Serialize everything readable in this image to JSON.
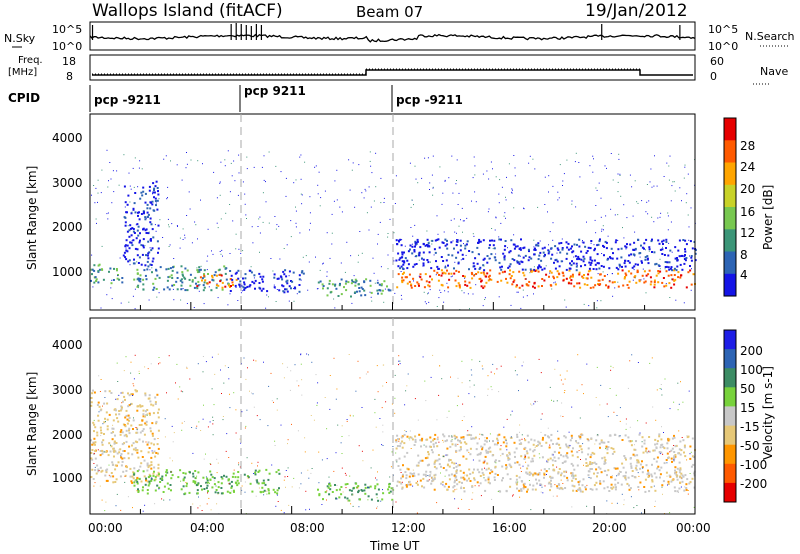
{
  "header": {
    "site": "Wallops Island (fitACF)",
    "beam": "Beam 07",
    "date": "19/Jan/2012"
  },
  "nsky_panel": {
    "left_label": "N.Sky",
    "right_label": "N.Search",
    "ticks_left": [
      "10^5",
      "10^0"
    ],
    "ticks_right": [
      "10^5",
      "10^0"
    ]
  },
  "freq_panel": {
    "left_label_1": "Freq.",
    "left_label_2": "[MHz]",
    "right_label": "Nave",
    "ticks_left": [
      "18",
      "8"
    ],
    "ticks_right": [
      "60",
      "0"
    ]
  },
  "cpid": {
    "label": "CPID",
    "segments": [
      {
        "text": "pcp -9211",
        "start_h": 0
      },
      {
        "text": "pcp 9211",
        "start_h": 6
      },
      {
        "text": "pcp -9211",
        "start_h": 12
      }
    ]
  },
  "x_axis": {
    "label": "Time UT",
    "ticks": [
      "00:00",
      "04:00",
      "08:00",
      "12:00",
      "16:00",
      "20:00",
      "00:00"
    ]
  },
  "power_panel": {
    "ylabel": "Slant Range [km]",
    "yticks": [
      "1000",
      "2000",
      "3000",
      "4000"
    ],
    "colorbar_label": "Power [dB]",
    "colorbar_ticks": [
      "4",
      "8",
      "12",
      "16",
      "20",
      "24",
      "28"
    ],
    "colors": [
      "#1414e6",
      "#2d64b4",
      "#3c9678",
      "#78c850",
      "#c8d228",
      "#ffa500",
      "#ff5a00",
      "#e60000"
    ]
  },
  "velocity_panel": {
    "ylabel": "Slant Range [km]",
    "yticks": [
      "1000",
      "2000",
      "3000",
      "4000"
    ],
    "colorbar_label": "Velocity [m s-1]",
    "colorbar_ticks": [
      "200",
      "100",
      "50",
      "15",
      "-15",
      "-50",
      "-100",
      "-200"
    ],
    "colors": [
      "#1e1ee6",
      "#2d64b4",
      "#3c8c64",
      "#78d23c",
      "#c8c8c8",
      "#e6c878",
      "#ff9600",
      "#ff5a00",
      "#e60000"
    ]
  },
  "chart_data": {
    "type": "heatmap",
    "x_range_hours": [
      0,
      24
    ],
    "y_range_km": [
      180,
      4600
    ],
    "power_bands": [
      {
        "h0": 0.0,
        "h1": 1.3,
        "km0": 800,
        "km1": 1250,
        "level": "mid"
      },
      {
        "h0": 1.3,
        "h1": 2.7,
        "km0": 1200,
        "km1": 3100,
        "level": "low"
      },
      {
        "h0": 1.7,
        "h1": 5.5,
        "km0": 650,
        "km1": 1200,
        "level": "mid"
      },
      {
        "h0": 4.2,
        "h1": 5.8,
        "km0": 700,
        "km1": 1000,
        "level": "high"
      },
      {
        "h0": 5.5,
        "h1": 8.5,
        "km0": 600,
        "km1": 1100,
        "level": "low"
      },
      {
        "h0": 9.0,
        "h1": 12.0,
        "km0": 500,
        "km1": 900,
        "level": "mid"
      },
      {
        "h0": 12.1,
        "h1": 24.0,
        "km0": 700,
        "km1": 1100,
        "level": "high"
      },
      {
        "h0": 12.1,
        "h1": 24.0,
        "km0": 1100,
        "km1": 1800,
        "level": "low"
      }
    ],
    "velocity_bands": [
      {
        "h0": 0.0,
        "h1": 2.7,
        "km0": 900,
        "km1": 3000,
        "level": "neg"
      },
      {
        "h0": 1.7,
        "h1": 7.5,
        "km0": 650,
        "km1": 1200,
        "level": "pos"
      },
      {
        "h0": 9.0,
        "h1": 12.0,
        "km0": 500,
        "km1": 900,
        "level": "pos"
      },
      {
        "h0": 12.1,
        "h1": 24.0,
        "km0": 700,
        "km1": 2000,
        "level": "zero"
      }
    ]
  }
}
